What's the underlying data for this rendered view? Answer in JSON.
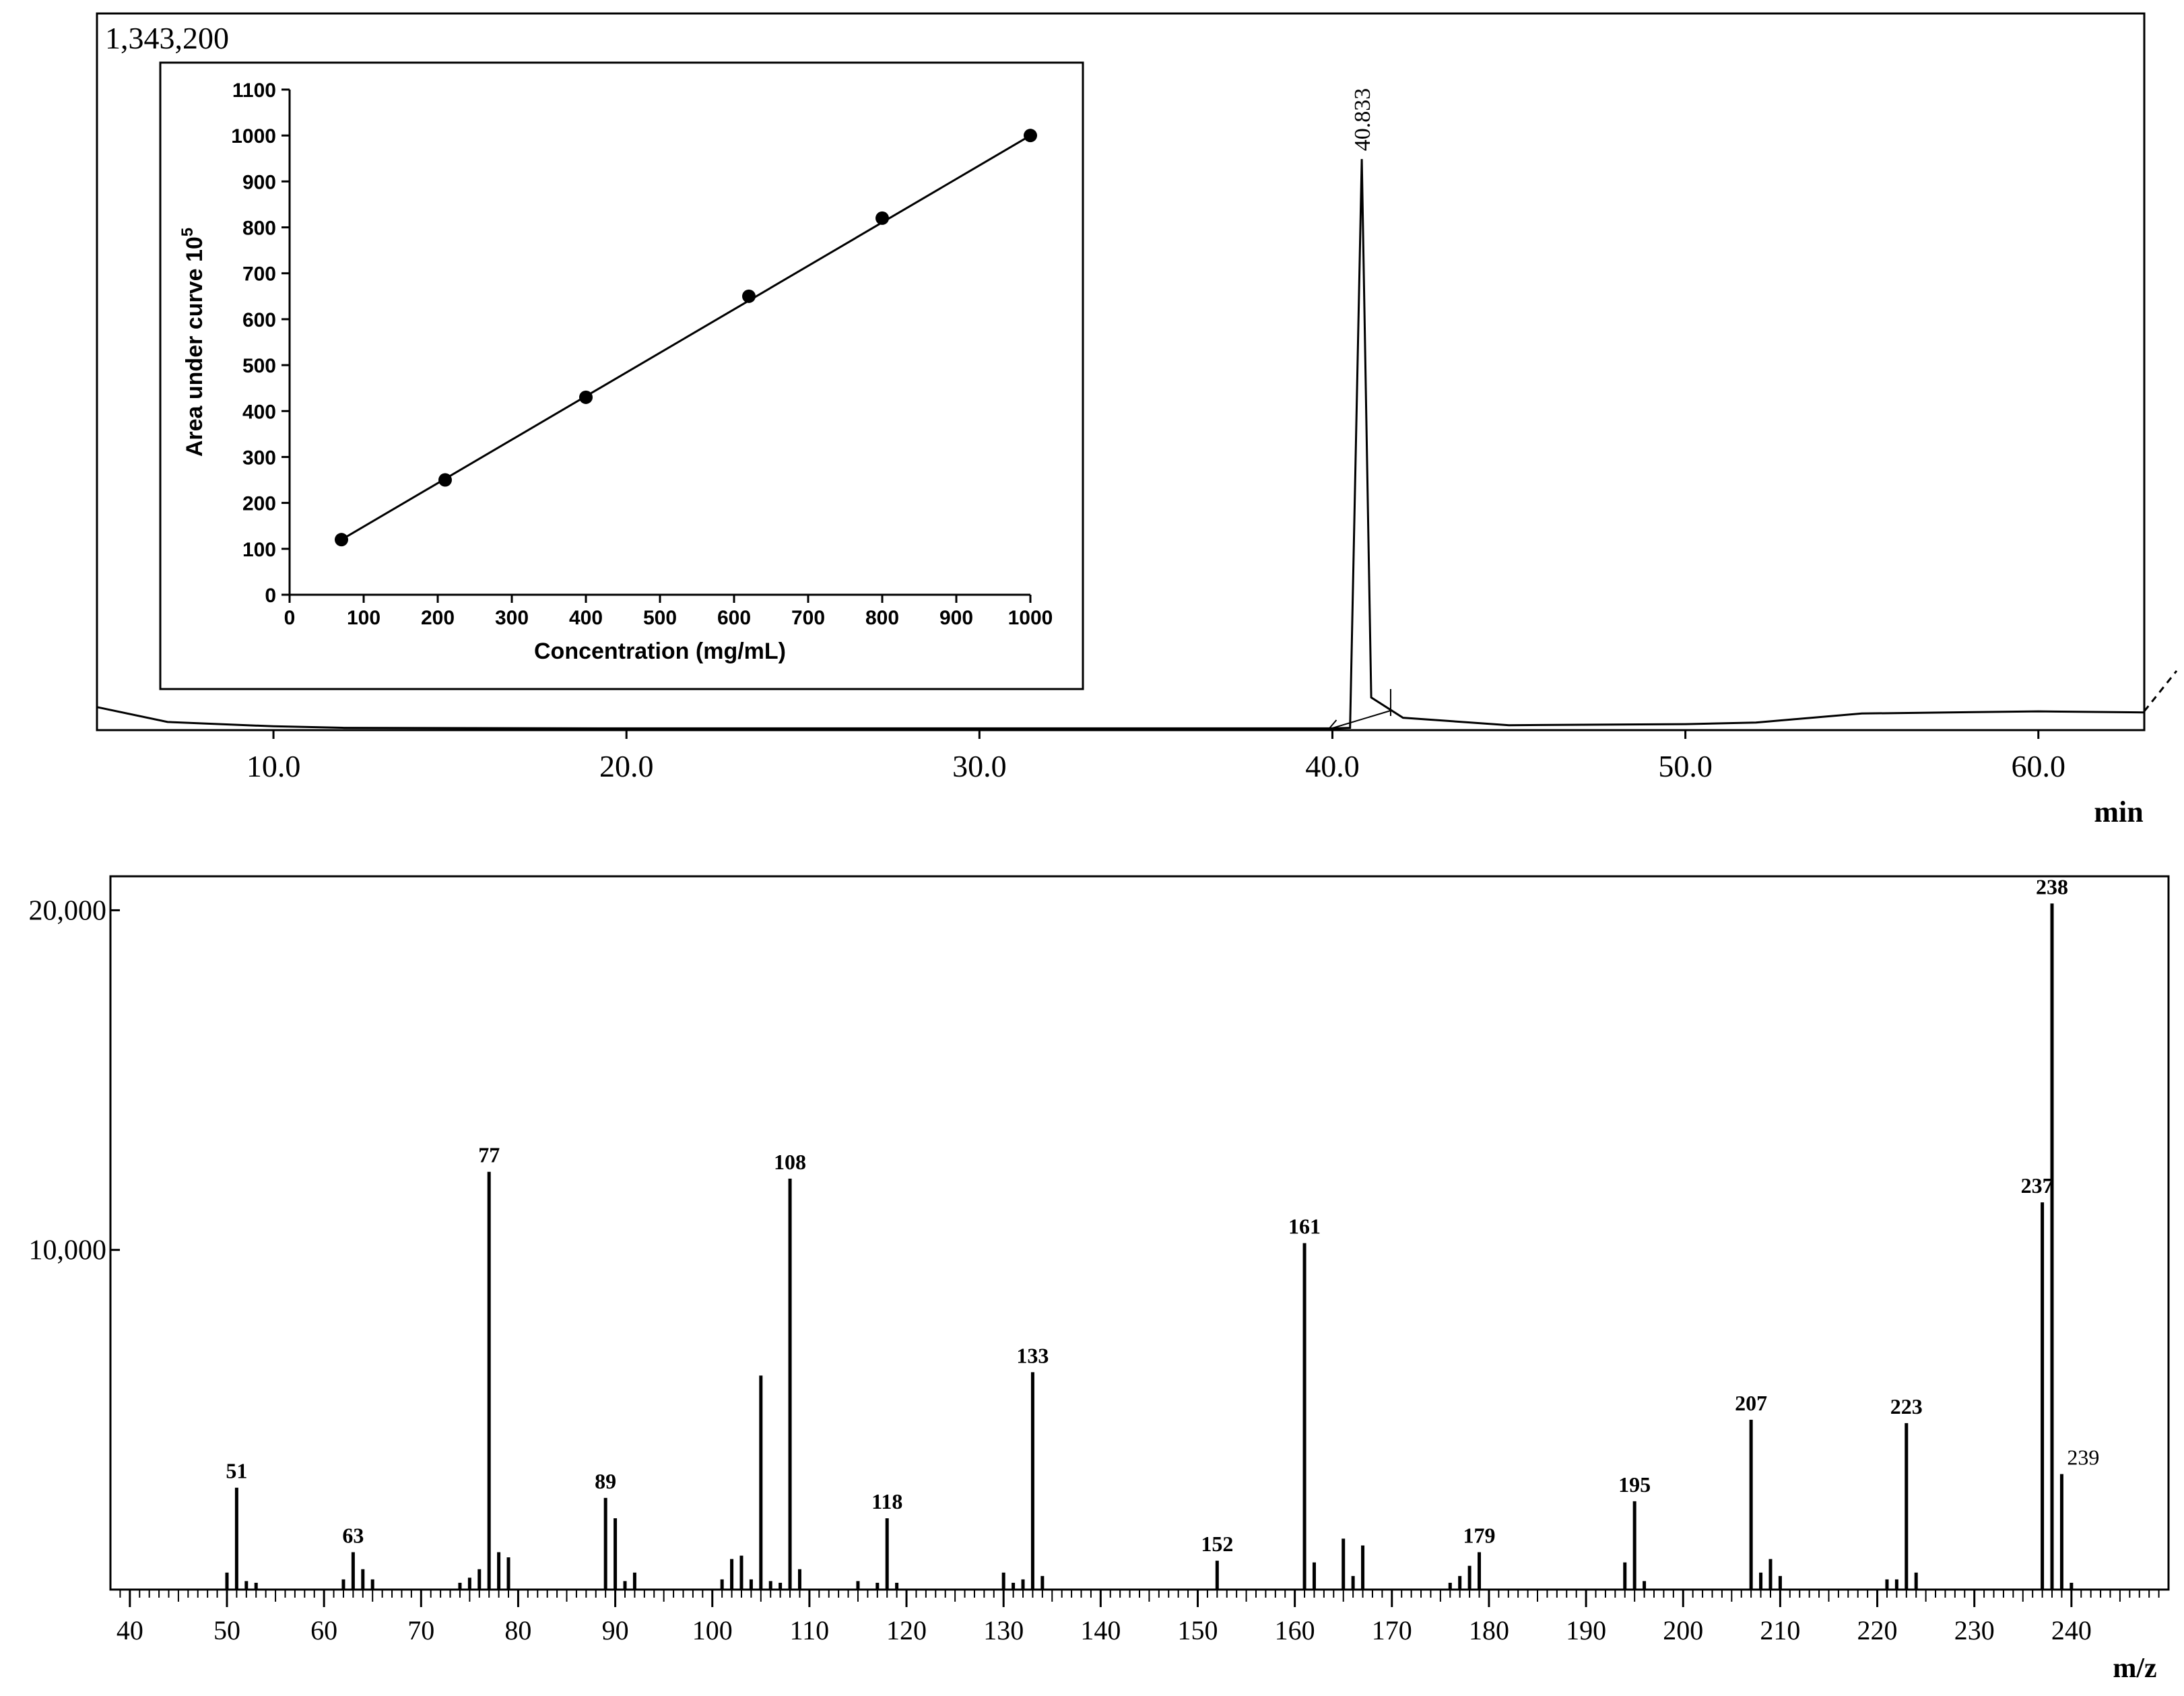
{
  "chromatogram": {
    "y_max_label": "1,343,200",
    "peak_label": "40.833",
    "x_tick_labels": [
      "10.0",
      "20.0",
      "30.0",
      "40.0",
      "50.0",
      "60.0"
    ],
    "x_unit": "min"
  },
  "chart_data": [
    {
      "type": "line",
      "name": "chromatogram",
      "xlabel": "min",
      "xlim": [
        5.0,
        63.0
      ],
      "ylim": [
        0,
        1343200
      ],
      "x_ticks": [
        10.0,
        20.0,
        30.0,
        40.0,
        50.0,
        60.0
      ],
      "peaks": [
        {
          "x": 40.833,
          "label": "40.833",
          "y": 1070000
        }
      ],
      "baseline_points": [
        [
          5.0,
          42000
        ],
        [
          7.0,
          14000
        ],
        [
          10.0,
          6000
        ],
        [
          12.0,
          3000
        ],
        [
          20.0,
          2000
        ],
        [
          30.0,
          2000
        ],
        [
          40.0,
          2000
        ],
        [
          40.5,
          3000
        ],
        [
          40.833,
          1070000
        ],
        [
          41.1,
          60000
        ],
        [
          42.0,
          22000
        ],
        [
          45.0,
          8000
        ],
        [
          50.0,
          10000
        ],
        [
          52.0,
          13000
        ],
        [
          55.0,
          30000
        ],
        [
          60.0,
          34000
        ],
        [
          63.0,
          32000
        ]
      ]
    },
    {
      "type": "scatter",
      "name": "calibration-inset",
      "xlabel": "Concentration (mg/mL)",
      "ylabel": "Area under curve 10",
      "ylabel_superscript": "5",
      "xlim": [
        0,
        1000
      ],
      "ylim": [
        0,
        1100
      ],
      "x_ticks": [
        "0",
        "100",
        "200",
        "300",
        "400",
        "500",
        "600",
        "700",
        "800",
        "900",
        "1000"
      ],
      "y_ticks": [
        "0",
        "100",
        "200",
        "300",
        "400",
        "500",
        "600",
        "700",
        "800",
        "900",
        "1000",
        "1100"
      ],
      "points": [
        [
          70,
          120
        ],
        [
          210,
          250
        ],
        [
          400,
          430
        ],
        [
          620,
          650
        ],
        [
          800,
          820
        ],
        [
          1000,
          1000
        ]
      ],
      "fit_line": [
        [
          70,
          120
        ],
        [
          1000,
          1000
        ]
      ]
    },
    {
      "type": "bar",
      "name": "mass-spectrum",
      "xlabel": "m/z",
      "xlim": [
        38,
        250
      ],
      "ylim": [
        0,
        21000
      ],
      "x_ticks": [
        "40",
        "50",
        "60",
        "70",
        "80",
        "90",
        "100",
        "110",
        "120",
        "130",
        "140",
        "150",
        "160",
        "170",
        "180",
        "190",
        "200",
        "210",
        "220",
        "230",
        "240"
      ],
      "y_ticks": [
        "10,000",
        "20,000"
      ],
      "y_tick_values": [
        10000,
        20000
      ],
      "peaks": [
        {
          "mz": 50,
          "intensity": 500
        },
        {
          "mz": 51,
          "intensity": 3000,
          "label": "51"
        },
        {
          "mz": 52,
          "intensity": 250
        },
        {
          "mz": 53,
          "intensity": 200
        },
        {
          "mz": 62,
          "intensity": 300
        },
        {
          "mz": 63,
          "intensity": 1100,
          "label": "63"
        },
        {
          "mz": 64,
          "intensity": 600
        },
        {
          "mz": 65,
          "intensity": 300
        },
        {
          "mz": 74,
          "intensity": 200
        },
        {
          "mz": 75,
          "intensity": 350
        },
        {
          "mz": 76,
          "intensity": 600
        },
        {
          "mz": 77,
          "intensity": 12300,
          "label": "77"
        },
        {
          "mz": 78,
          "intensity": 1100
        },
        {
          "mz": 79,
          "intensity": 950
        },
        {
          "mz": 89,
          "intensity": 2700,
          "label": "89"
        },
        {
          "mz": 90,
          "intensity": 2100
        },
        {
          "mz": 91,
          "intensity": 250
        },
        {
          "mz": 92,
          "intensity": 500
        },
        {
          "mz": 101,
          "intensity": 300
        },
        {
          "mz": 102,
          "intensity": 900
        },
        {
          "mz": 103,
          "intensity": 1000
        },
        {
          "mz": 104,
          "intensity": 300
        },
        {
          "mz": 105,
          "intensity": 6300
        },
        {
          "mz": 106,
          "intensity": 250
        },
        {
          "mz": 107,
          "intensity": 200
        },
        {
          "mz": 108,
          "intensity": 12100,
          "label": "108"
        },
        {
          "mz": 109,
          "intensity": 600
        },
        {
          "mz": 115,
          "intensity": 250
        },
        {
          "mz": 117,
          "intensity": 200
        },
        {
          "mz": 118,
          "intensity": 2100,
          "label": "118"
        },
        {
          "mz": 119,
          "intensity": 200
        },
        {
          "mz": 130,
          "intensity": 500
        },
        {
          "mz": 131,
          "intensity": 200
        },
        {
          "mz": 132,
          "intensity": 300
        },
        {
          "mz": 133,
          "intensity": 6400,
          "label": "133"
        },
        {
          "mz": 134,
          "intensity": 400
        },
        {
          "mz": 152,
          "intensity": 850,
          "label": "152"
        },
        {
          "mz": 161,
          "intensity": 10200,
          "label": "161"
        },
        {
          "mz": 162,
          "intensity": 800
        },
        {
          "mz": 165,
          "intensity": 1500
        },
        {
          "mz": 166,
          "intensity": 400
        },
        {
          "mz": 167,
          "intensity": 1300
        },
        {
          "mz": 176,
          "intensity": 200
        },
        {
          "mz": 177,
          "intensity": 400
        },
        {
          "mz": 178,
          "intensity": 700
        },
        {
          "mz": 179,
          "intensity": 1100,
          "label": "179"
        },
        {
          "mz": 194,
          "intensity": 800
        },
        {
          "mz": 195,
          "intensity": 2600,
          "label": "195"
        },
        {
          "mz": 196,
          "intensity": 250
        },
        {
          "mz": 207,
          "intensity": 5000,
          "label": "207"
        },
        {
          "mz": 208,
          "intensity": 500
        },
        {
          "mz": 209,
          "intensity": 900
        },
        {
          "mz": 210,
          "intensity": 400
        },
        {
          "mz": 221,
          "intensity": 300
        },
        {
          "mz": 222,
          "intensity": 300
        },
        {
          "mz": 223,
          "intensity": 4900,
          "label": "223"
        },
        {
          "mz": 224,
          "intensity": 500
        },
        {
          "mz": 237,
          "intensity": 11400,
          "label": "237"
        },
        {
          "mz": 238,
          "intensity": 20200,
          "label": "238"
        },
        {
          "mz": 239,
          "intensity": 3400,
          "label": "239"
        },
        {
          "mz": 240,
          "intensity": 200
        }
      ]
    }
  ]
}
